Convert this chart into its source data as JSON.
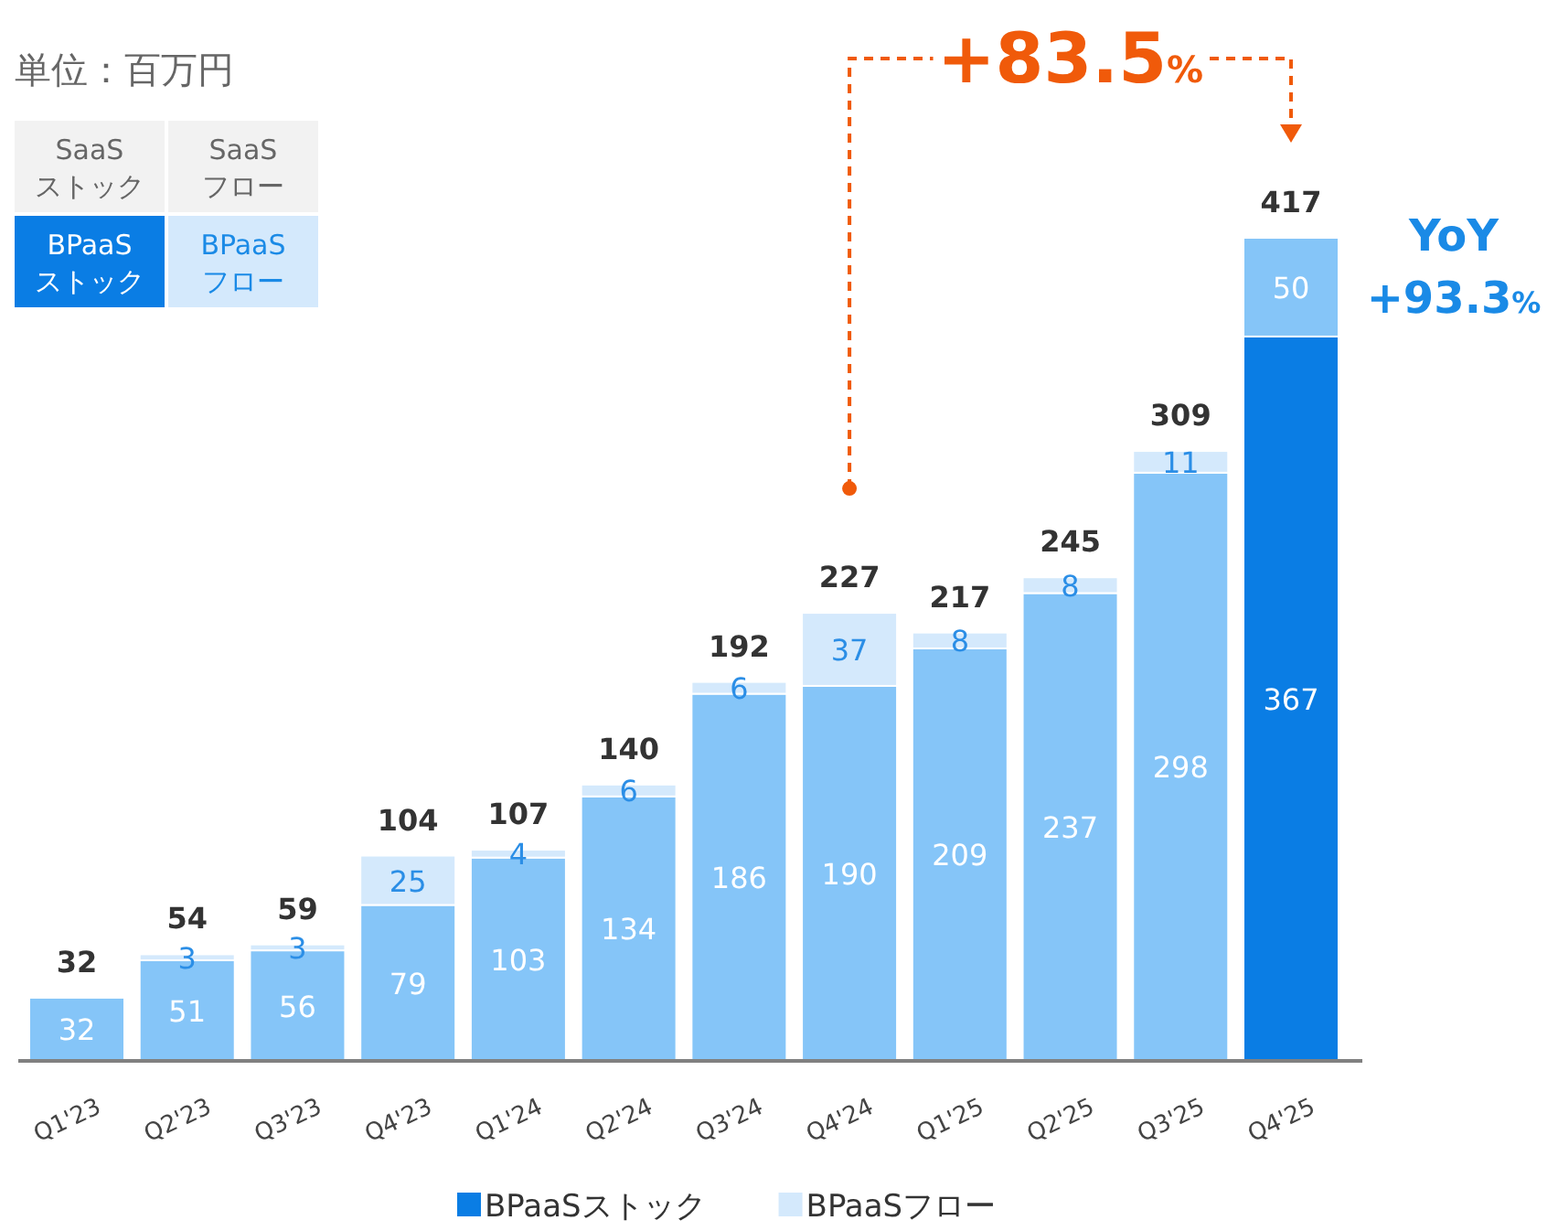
{
  "chart_data": {
    "type": "bar",
    "stacked": true,
    "legend": "bottom",
    "categories": [
      "Q1'23",
      "Q2'23",
      "Q3'23",
      "Q4'23",
      "Q1'24",
      "Q2'24",
      "Q3'24",
      "Q4'24",
      "Q1'25",
      "Q2'25",
      "Q3'25",
      "Q4'25"
    ],
    "series": [
      {
        "name": "BPaaSストック",
        "color": "#0a7de4",
        "colors": [
          "#85c5f8",
          "#85c5f8",
          "#85c5f8",
          "#85c5f8",
          "#85c5f8",
          "#85c5f8",
          "#85c5f8",
          "#85c5f8",
          "#85c5f8",
          "#85c5f8",
          "#85c5f8",
          "#0a7de4"
        ],
        "values": [
          32,
          51,
          56,
          79,
          103,
          134,
          186,
          190,
          209,
          237,
          298,
          367
        ],
        "value_labels": [
          "32",
          "51",
          "56",
          "79",
          "103",
          "134",
          "186",
          "190",
          "209",
          "237",
          "298",
          "367"
        ]
      },
      {
        "name": "BPaaSフロー",
        "color": "#d4e9fc",
        "colors": [
          "#d4e9fc",
          "#d4e9fc",
          "#d4e9fc",
          "#d4e9fc",
          "#d4e9fc",
          "#d4e9fc",
          "#d4e9fc",
          "#d4e9fc",
          "#d4e9fc",
          "#d4e9fc",
          "#d4e9fc",
          "#85c5f8"
        ],
        "values": [
          0,
          3,
          3,
          25,
          4,
          6,
          6,
          37,
          8,
          8,
          11,
          50
        ],
        "value_labels": [
          null,
          "3",
          "3",
          "25",
          "4",
          "6",
          "6",
          "37",
          "8",
          "8",
          "11",
          "50"
        ]
      }
    ],
    "totals": [
      "32",
      "54",
      "59",
      "104",
      "107",
      "140",
      "192",
      "227",
      "217",
      "245",
      "309",
      "417"
    ],
    "annotations": [
      "単位：百万円",
      "SaaS\nストック",
      "SaaS\nフロー",
      "BPaaS\nストック",
      "BPaaS\nフロー",
      "+83.5%",
      {
        "text": "YoY\n+93.3%",
        "x": "Q4'25",
        "y": 367
      }
    ]
  }
}
